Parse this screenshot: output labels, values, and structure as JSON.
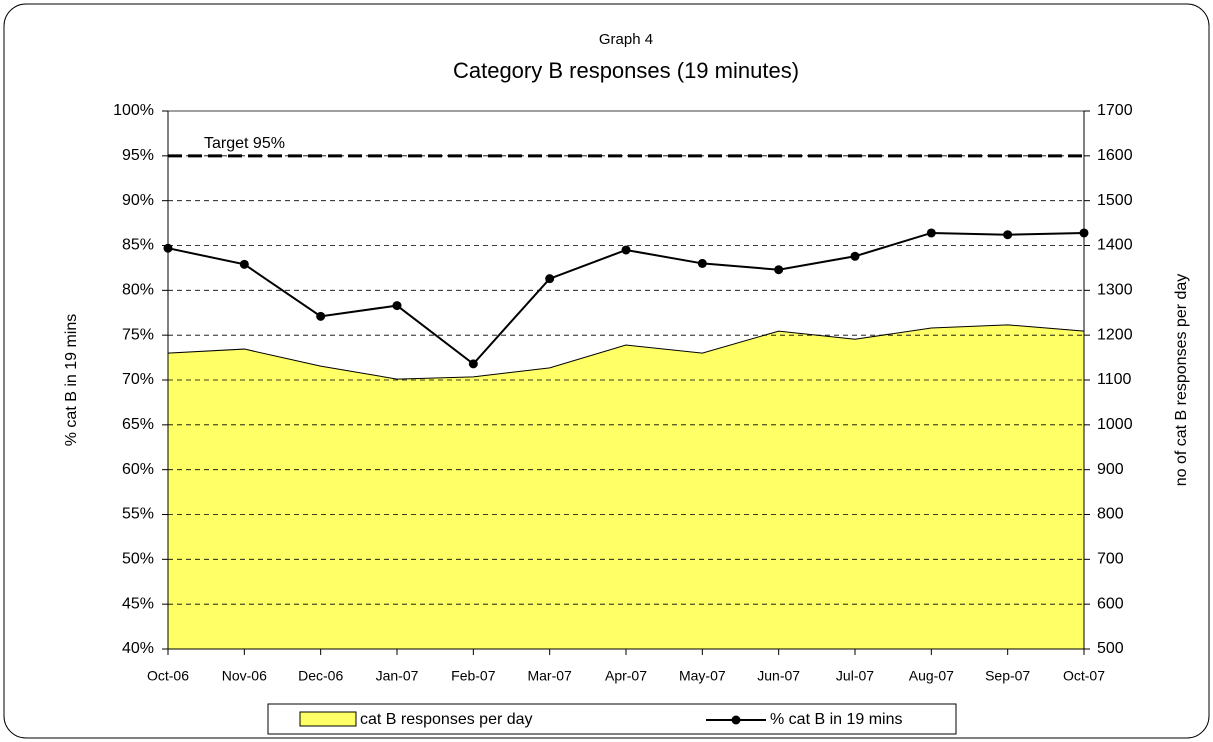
{
  "chart_data": {
    "type": "combo",
    "subtitle": "Graph 4",
    "title": "Category B responses (19 minutes)",
    "ylabel": "% cat B in 19 mins",
    "y2label": "no of cat B responses per day",
    "categories": [
      "Oct-06",
      "Nov-06",
      "Dec-06",
      "Jan-07",
      "Feb-07",
      "Mar-07",
      "Apr-07",
      "May-07",
      "Jun-07",
      "Jul-07",
      "Aug-07",
      "Sep-07",
      "Oct-07"
    ],
    "series": [
      {
        "name": "cat B responses per day",
        "type": "area",
        "axis": "y2",
        "color": "#ffff66",
        "values": [
          1160,
          1169,
          1131,
          1102,
          1107,
          1127,
          1178,
          1160,
          1209,
          1191,
          1216,
          1223,
          1209
        ]
      },
      {
        "name": "% cat B in 19 mins",
        "type": "line",
        "axis": "y",
        "color": "#000000",
        "values": [
          84.7,
          82.9,
          77.1,
          78.3,
          71.8,
          81.3,
          84.5,
          83.0,
          82.3,
          83.8,
          86.4,
          86.2,
          86.4
        ]
      }
    ],
    "ylim": [
      40,
      100
    ],
    "yticks": [
      {
        "value": 40,
        "label": "40%"
      },
      {
        "value": 45,
        "label": "45%"
      },
      {
        "value": 50,
        "label": "50%"
      },
      {
        "value": 55,
        "label": "55%"
      },
      {
        "value": 60,
        "label": "60%"
      },
      {
        "value": 65,
        "label": "65%"
      },
      {
        "value": 70,
        "label": "70%"
      },
      {
        "value": 75,
        "label": "75%"
      },
      {
        "value": 80,
        "label": "80%"
      },
      {
        "value": 85,
        "label": "85%"
      },
      {
        "value": 90,
        "label": "90%"
      },
      {
        "value": 95,
        "label": "95%"
      },
      {
        "value": 100,
        "label": "100%"
      }
    ],
    "y2lim": [
      500,
      1700
    ],
    "y2ticks": [
      500,
      600,
      700,
      800,
      900,
      1000,
      1100,
      1200,
      1300,
      1400,
      1500,
      1600,
      1700
    ],
    "annotations": [
      {
        "text": "Target 95%",
        "value": 95
      }
    ],
    "grid": true,
    "legend": "bottom"
  }
}
